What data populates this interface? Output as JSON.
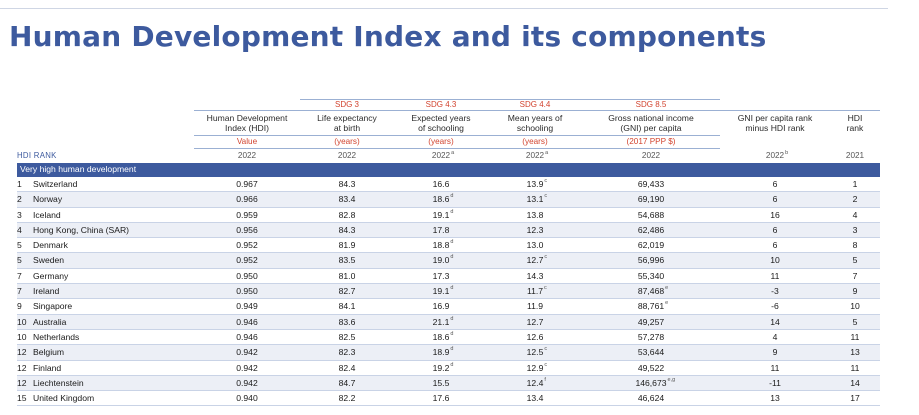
{
  "title": "Human Development Index and its components",
  "header": {
    "sdg": [
      "",
      "",
      "",
      "SDG 3",
      "SDG 4.3",
      "SDG 4.4",
      "SDG 8.5",
      "",
      ""
    ],
    "names": [
      "",
      "",
      "Human Development\nIndex (HDI)",
      "Life expectancy\nat birth",
      "Expected years\nof schooling",
      "Mean years of\nschooling",
      "Gross national income\n(GNI) per capita",
      "GNI per capita rank\nminus HDI rank",
      "HDI\nrank"
    ],
    "units": [
      "",
      "",
      "Value",
      "(years)",
      "(years)",
      "(years)",
      "(2017 PPP $)",
      "",
      ""
    ],
    "rank_label": "HDI RANK",
    "years": [
      "2022",
      "2022",
      "2022",
      "2022",
      "2022",
      "2022",
      "2021"
    ],
    "year_notes": [
      "",
      "",
      "a",
      "a",
      "",
      "b",
      ""
    ]
  },
  "group_label": "Very high human development",
  "rows": [
    {
      "rank": "1",
      "country": "Switzerland",
      "hdi": "0.967",
      "life": "84.3",
      "exp": "16.6",
      "exp_note": "",
      "mean": "13.9",
      "mean_note": "c",
      "gni": "69,433",
      "gni_note": "",
      "gni_rank": "6",
      "hdi_rank": "1"
    },
    {
      "rank": "2",
      "country": "Norway",
      "hdi": "0.966",
      "life": "83.4",
      "exp": "18.6",
      "exp_note": "d",
      "mean": "13.1",
      "mean_note": "c",
      "gni": "69,190",
      "gni_note": "",
      "gni_rank": "6",
      "hdi_rank": "2"
    },
    {
      "rank": "3",
      "country": "Iceland",
      "hdi": "0.959",
      "life": "82.8",
      "exp": "19.1",
      "exp_note": "d",
      "mean": "13.8",
      "mean_note": "",
      "gni": "54,688",
      "gni_note": "",
      "gni_rank": "16",
      "hdi_rank": "4"
    },
    {
      "rank": "4",
      "country": "Hong Kong, China (SAR)",
      "hdi": "0.956",
      "life": "84.3",
      "exp": "17.8",
      "exp_note": "",
      "mean": "12.3",
      "mean_note": "",
      "gni": "62,486",
      "gni_note": "",
      "gni_rank": "6",
      "hdi_rank": "3"
    },
    {
      "rank": "5",
      "country": "Denmark",
      "hdi": "0.952",
      "life": "81.9",
      "exp": "18.8",
      "exp_note": "d",
      "mean": "13.0",
      "mean_note": "",
      "gni": "62,019",
      "gni_note": "",
      "gni_rank": "6",
      "hdi_rank": "8"
    },
    {
      "rank": "5",
      "country": "Sweden",
      "hdi": "0.952",
      "life": "83.5",
      "exp": "19.0",
      "exp_note": "d",
      "mean": "12.7",
      "mean_note": "c",
      "gni": "56,996",
      "gni_note": "",
      "gni_rank": "10",
      "hdi_rank": "5"
    },
    {
      "rank": "7",
      "country": "Germany",
      "hdi": "0.950",
      "life": "81.0",
      "exp": "17.3",
      "exp_note": "",
      "mean": "14.3",
      "mean_note": "",
      "gni": "55,340",
      "gni_note": "",
      "gni_rank": "11",
      "hdi_rank": "7"
    },
    {
      "rank": "7",
      "country": "Ireland",
      "hdi": "0.950",
      "life": "82.7",
      "exp": "19.1",
      "exp_note": "d",
      "mean": "11.7",
      "mean_note": "c",
      "gni": "87,468",
      "gni_note": "e",
      "gni_rank": "-3",
      "hdi_rank": "9"
    },
    {
      "rank": "9",
      "country": "Singapore",
      "hdi": "0.949",
      "life": "84.1",
      "exp": "16.9",
      "exp_note": "",
      "mean": "11.9",
      "mean_note": "",
      "gni": "88,761",
      "gni_note": "e",
      "gni_rank": "-6",
      "hdi_rank": "10"
    },
    {
      "rank": "10",
      "country": "Australia",
      "hdi": "0.946",
      "life": "83.6",
      "exp": "21.1",
      "exp_note": "d",
      "mean": "12.7",
      "mean_note": "",
      "gni": "49,257",
      "gni_note": "",
      "gni_rank": "14",
      "hdi_rank": "5"
    },
    {
      "rank": "10",
      "country": "Netherlands",
      "hdi": "0.946",
      "life": "82.5",
      "exp": "18.6",
      "exp_note": "d",
      "mean": "12.6",
      "mean_note": "",
      "gni": "57,278",
      "gni_note": "",
      "gni_rank": "4",
      "hdi_rank": "11"
    },
    {
      "rank": "12",
      "country": "Belgium",
      "hdi": "0.942",
      "life": "82.3",
      "exp": "18.9",
      "exp_note": "d",
      "mean": "12.5",
      "mean_note": "c",
      "gni": "53,644",
      "gni_note": "",
      "gni_rank": "9",
      "hdi_rank": "13"
    },
    {
      "rank": "12",
      "country": "Finland",
      "hdi": "0.942",
      "life": "82.4",
      "exp": "19.2",
      "exp_note": "d",
      "mean": "12.9",
      "mean_note": "c",
      "gni": "49,522",
      "gni_note": "",
      "gni_rank": "11",
      "hdi_rank": "11"
    },
    {
      "rank": "12",
      "country": "Liechtenstein",
      "hdi": "0.942",
      "life": "84.7",
      "exp": "15.5",
      "exp_note": "",
      "mean": "12.4",
      "mean_note": "f",
      "gni": "146,673",
      "gni_note": "e,g",
      "gni_rank": "-11",
      "hdi_rank": "14"
    },
    {
      "rank": "15",
      "country": "United Kingdom",
      "hdi": "0.940",
      "life": "82.2",
      "exp": "17.6",
      "exp_note": "",
      "mean": "13.4",
      "mean_note": "",
      "gni": "46,624",
      "gni_note": "",
      "gni_rank": "13",
      "hdi_rank": "17"
    }
  ]
}
